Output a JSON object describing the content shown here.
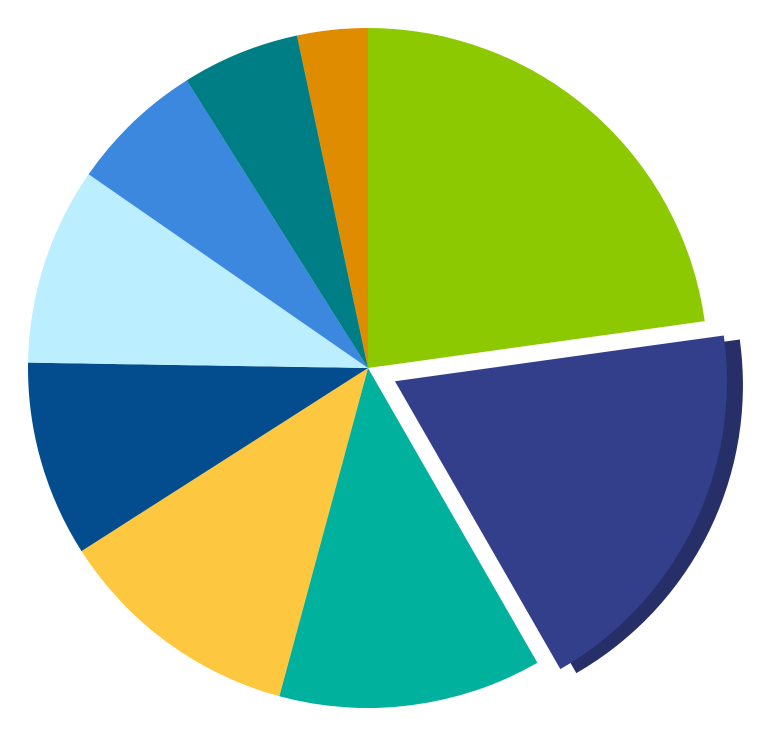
{
  "chart_data": {
    "type": "pie",
    "title": "",
    "start_angle_deg": 0,
    "direction": "clockwise",
    "values": [
      22.8,
      18.9,
      12.5,
      11.75,
      9.3,
      9.4,
      6.4,
      5.6,
      3.35
    ],
    "colors": [
      "#8DC900",
      "#333F8A",
      "#00B19D",
      "#FDC840",
      "#034D8E",
      "#BBEEFE",
      "#3D88DF",
      "#007E85",
      "#DF8C00"
    ],
    "exploded_index": 1,
    "exploded_side_color": "#262F68",
    "legend": "none",
    "data_labels": "none"
  }
}
